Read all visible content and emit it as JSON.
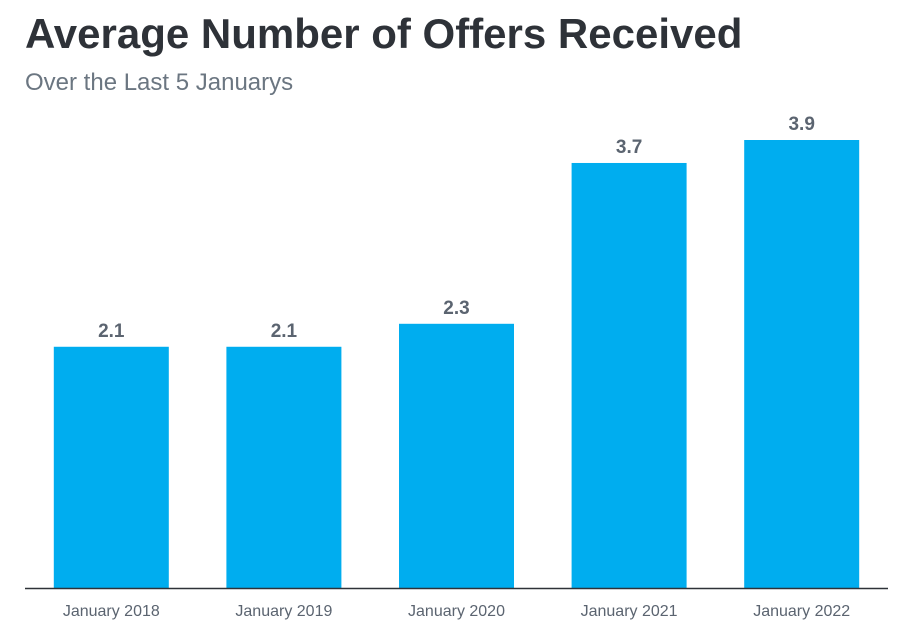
{
  "chart_data": {
    "type": "bar",
    "title": "Average Number of Offers Received",
    "subtitle": "Over the Last 5 Januarys",
    "categories": [
      "January 2018",
      "January 2019",
      "January 2020",
      "January 2021",
      "January 2022"
    ],
    "values": [
      2.1,
      2.1,
      2.3,
      3.7,
      3.9
    ],
    "value_labels": [
      "2.1",
      "2.1",
      "2.3",
      "3.7",
      "3.9"
    ],
    "ylim": [
      0,
      3.9
    ],
    "grid": false,
    "legend": "none",
    "colors": {
      "bar": "#00adef",
      "title": "#2e3238",
      "subtitle": "#6b7681",
      "labels": "#5b6470",
      "axis": "#2e3238"
    }
  }
}
